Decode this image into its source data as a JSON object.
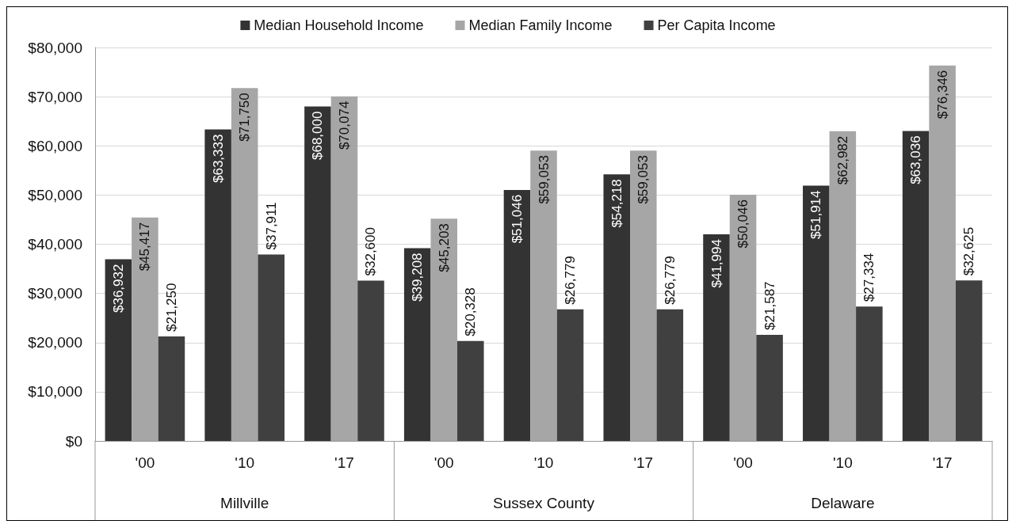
{
  "chart_data": {
    "type": "bar",
    "categories": [
      "'00",
      "'10",
      "'17",
      "'00",
      "'10",
      "'17",
      "'00",
      "'10",
      "'17"
    ],
    "annotations": [
      "Millville",
      "Sussex County",
      "Delaware"
    ],
    "series": [
      {
        "name": "Median Household Income",
        "color": "#333333",
        "values": [
          36932,
          63333,
          68000,
          39208,
          51046,
          54218,
          41994,
          51914,
          63036
        ],
        "value_labels": [
          "$36,932",
          "$63,333",
          "$68,000",
          "$39,208",
          "$51,046",
          "$54,218",
          "$41,994",
          "$51,914",
          "$63,036"
        ]
      },
      {
        "name": "Median Family Income",
        "color": "#a6a6a6",
        "values": [
          45417,
          71750,
          70074,
          45203,
          59053,
          59053,
          50046,
          62982,
          76346
        ],
        "value_labels": [
          "$45,417",
          "$71,750",
          "$70,074",
          "$45,203",
          "$59,053",
          "$59,053",
          "$50,046",
          "$62,982",
          "$76,346"
        ]
      },
      {
        "name": "Per Capita Income",
        "color": "#404040",
        "values": [
          21250,
          37911,
          32600,
          20328,
          26779,
          26779,
          21587,
          27334,
          32625
        ],
        "value_labels": [
          "$21,250",
          "$37,911",
          "$32,600",
          "$20,328",
          "$26,779",
          "$26,779",
          "$21,587",
          "$27,334",
          "$32,625"
        ]
      }
    ],
    "ylim": [
      0,
      80000
    ],
    "yticks": [
      {
        "value": 0,
        "label": "$0"
      },
      {
        "value": 10000,
        "label": "$10,000"
      },
      {
        "value": 20000,
        "label": "$20,000"
      },
      {
        "value": 30000,
        "label": "$30,000"
      },
      {
        "value": 40000,
        "label": "$40,000"
      },
      {
        "value": 50000,
        "label": "$50,000"
      },
      {
        "value": 60000,
        "label": "$60,000"
      },
      {
        "value": 70000,
        "label": "$70,000"
      },
      {
        "value": 80000,
        "label": "$80,000"
      }
    ],
    "grid": "y",
    "legend": "top"
  }
}
